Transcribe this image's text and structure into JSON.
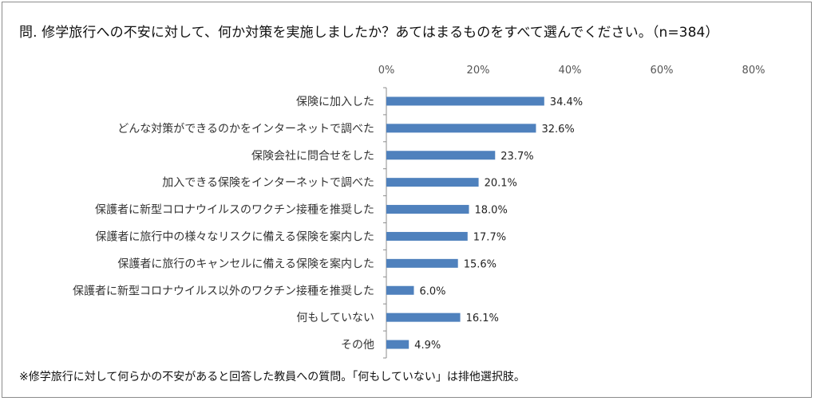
{
  "header": {
    "title": "問. 修学旅行への不安に対して、何か対策を実施しましたか？あてはまるものをすべて選んでください。（n=384）"
  },
  "footer": {
    "note": "※修学旅行に対して何らかの不安があると回答した教員への質問。「何もしていない」は排他選択肢。"
  },
  "chart_data": {
    "type": "bar",
    "orientation": "horizontal",
    "title": "問. 修学旅行への不安に対して、何か対策を実施しましたか？あてはまるものをすべて選んでください。（n=384）",
    "xlim": [
      0,
      80
    ],
    "x_ticks": [
      "0%",
      "20%",
      "40%",
      "60%",
      "80%"
    ],
    "x_tick_values": [
      0,
      20,
      40,
      60,
      80
    ],
    "x_axis_position": "top",
    "grid": false,
    "bar_color": "#4f81bd",
    "categories": [
      "保険に加入した",
      "どんな対策ができるのかをインターネットで調べた",
      "保険会社に問合せをした",
      "加入できる保険をインターネットで調べた",
      "保護者に新型コロナウイルスのワクチン接種を推奨した",
      "保護者に旅行中の様々なリスクに備える保険を案内した",
      "保護者に旅行のキャンセルに備える保険を案内した",
      "保護者に新型コロナウイルス以外のワクチン接種を推奨した",
      "何もしていない",
      "その他"
    ],
    "values": [
      34.4,
      32.6,
      23.7,
      20.1,
      18.0,
      17.7,
      15.6,
      6.0,
      16.1,
      4.9
    ],
    "value_labels": [
      "34.4%",
      "32.6%",
      "23.7%",
      "20.1%",
      "18.0%",
      "17.7%",
      "15.6%",
      "6.0%",
      "16.1%",
      "4.9%"
    ]
  }
}
